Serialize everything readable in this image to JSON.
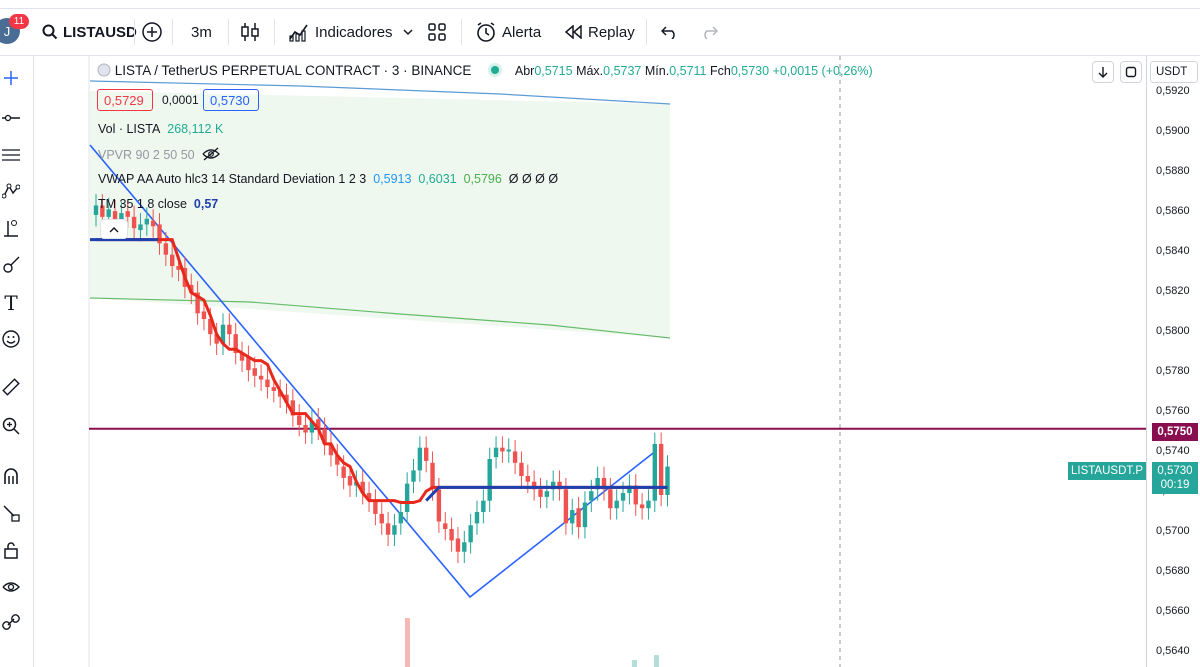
{
  "toolbar": {
    "avatar_letter": "J",
    "notif_count": "11",
    "symbol": "LISTAUSD",
    "interval": "3m",
    "indicators_label": "Indicadores",
    "alert_label": "Alerta",
    "replay_label": "Replay"
  },
  "legend": {
    "title": "LISTA / TetherUS PERPETUAL CONTRACT · 3 · BINANCE",
    "o_label": "Abr",
    "o": "0,5715",
    "h_label": "Máx.",
    "h": "0,5737",
    "l_label": "Mín.",
    "l": "0,5711",
    "c_label": "Fch",
    "c": "0,5730",
    "change": "+0,0015 (+0,26%)",
    "bid": "0,5729",
    "spread": "0,0001",
    "ask": "0,5730"
  },
  "indicators": {
    "vol_label": "Vol · LISTA",
    "vol_value": "268,112 K",
    "vpvr_label": "VPVR 90 2 50 50",
    "vwap_label": "VWAP AA Auto hlc3 14 Standard Deviation 1 2 3",
    "vwap_v1": "0,5913",
    "vwap_v2": "0,6031",
    "vwap_v3": "0,5796",
    "vwap_rest": "Ø Ø Ø Ø",
    "tm_label": "TM 35 1 8 close",
    "tm_value": "0,57"
  },
  "price_axis": {
    "currency": "USDT",
    "ticks": [
      "0,5920",
      "0,5900",
      "0,5880",
      "0,5860",
      "0,5840",
      "0,5820",
      "0,5800",
      "0,5780",
      "0,5760",
      "0,5740",
      "0,5720",
      "0,5700",
      "0,5680",
      "0,5660",
      "0,5640"
    ],
    "hline_label": "0,5750",
    "symbol_tag": "LISTAUSDT.P",
    "last_price": "0,5730",
    "countdown": "00:19"
  },
  "colors": {
    "up": "#26a69a",
    "down": "#ef5350",
    "hline": "#880e4f",
    "tm_line": "#e8281b",
    "trend": "#2962ff",
    "vwap_upper": "#5b9bd5",
    "vwap_lower": "#66bb6a"
  },
  "chart_data": {
    "type": "candlestick",
    "ylim": [
      0.5632,
      0.5928
    ],
    "horizontal_line": 0.575,
    "open": [
      0.5863,
      0.5868,
      0.5862,
      0.5865,
      0.5858,
      0.5865,
      0.5862,
      0.5855,
      0.5858,
      0.586,
      0.5858,
      0.5848,
      0.5842,
      0.5836,
      0.5835,
      0.5826,
      0.5822,
      0.5812,
      0.5808,
      0.58,
      0.5795,
      0.5805,
      0.58,
      0.579,
      0.5788,
      0.5782,
      0.5778,
      0.5776,
      0.5772,
      0.577,
      0.5768,
      0.5765,
      0.5757,
      0.5752,
      0.5748,
      0.5755,
      0.575,
      0.5742,
      0.5736,
      0.573,
      0.5725,
      0.572,
      0.5722,
      0.5716,
      0.5712,
      0.5705,
      0.57,
      0.5694,
      0.57,
      0.5706,
      0.5722,
      0.5728,
      0.574,
      0.5732,
      0.5718,
      0.57,
      0.5697,
      0.5692,
      0.5685,
      0.569,
      0.57,
      0.5706,
      0.5712,
      0.5735,
      0.574,
      0.5738,
      0.5738,
      0.5732,
      0.5725,
      0.5722,
      0.5718,
      0.5714,
      0.5718,
      0.5722,
      0.5718,
      0.57,
      0.5708,
      0.5698,
      0.5712,
      0.5718,
      0.5724,
      0.5718,
      0.5708,
      0.5712,
      0.5716,
      0.572,
      0.571,
      0.5708,
      0.5712,
      0.5742,
      0.5715
    ],
    "close": [
      0.5868,
      0.5862,
      0.5866,
      0.5858,
      0.5864,
      0.5862,
      0.5856,
      0.5858,
      0.5861,
      0.5857,
      0.5848,
      0.5842,
      0.5836,
      0.5834,
      0.5825,
      0.5822,
      0.5811,
      0.5808,
      0.58,
      0.5795,
      0.5805,
      0.58,
      0.579,
      0.5786,
      0.5781,
      0.5778,
      0.5776,
      0.5772,
      0.577,
      0.5767,
      0.5764,
      0.5757,
      0.5752,
      0.5748,
      0.5754,
      0.575,
      0.5742,
      0.5736,
      0.5731,
      0.5724,
      0.572,
      0.5722,
      0.5716,
      0.5712,
      0.5705,
      0.57,
      0.5694,
      0.5699,
      0.5706,
      0.5721,
      0.5728,
      0.574,
      0.5733,
      0.5718,
      0.5701,
      0.5697,
      0.5691,
      0.5685,
      0.569,
      0.5699,
      0.5706,
      0.5712,
      0.5734,
      0.574,
      0.5738,
      0.5739,
      0.5732,
      0.5725,
      0.5722,
      0.5718,
      0.5714,
      0.5717,
      0.5722,
      0.5718,
      0.57,
      0.5707,
      0.5698,
      0.5711,
      0.5717,
      0.5724,
      0.5718,
      0.5708,
      0.5712,
      0.5716,
      0.572,
      0.571,
      0.5708,
      0.5712,
      0.5742,
      0.5715,
      0.573
    ],
    "tm_line": [
      0.585,
      0.585,
      0.585,
      0.585,
      0.585,
      0.585,
      0.585,
      0.585,
      0.585,
      0.585,
      0.585,
      0.585,
      0.585,
      0.584,
      0.583,
      0.5822,
      0.582,
      0.5818,
      0.581,
      0.58,
      0.5795,
      0.5792,
      0.5792,
      0.579,
      0.5788,
      0.5786,
      0.5786,
      0.5784,
      0.5776,
      0.577,
      0.5764,
      0.5758,
      0.5758,
      0.5758,
      0.5754,
      0.575,
      0.5742,
      0.5742,
      0.5736,
      0.5732,
      0.573,
      0.5722,
      0.5716,
      0.5712,
      0.5712,
      0.5712,
      0.5712,
      0.5712,
      0.5711,
      0.5711,
      0.5711,
      0.5712,
      0.5717,
      0.5719,
      0.5719,
      0.5719,
      0.5719,
      0.5719,
      0.5719,
      0.5719,
      0.5719,
      0.5719,
      0.5719,
      0.5719,
      0.5719,
      0.5719,
      0.5719,
      0.5719,
      0.5719,
      0.5719,
      0.5719,
      0.5719,
      0.5719,
      0.5719,
      0.5719,
      0.5719,
      0.5719,
      0.5719,
      0.5719,
      0.5719,
      0.5719,
      0.5719,
      0.5719,
      0.5719,
      0.5719,
      0.5719,
      0.5719,
      0.5719,
      0.5719,
      0.5719,
      0.5719
    ]
  }
}
